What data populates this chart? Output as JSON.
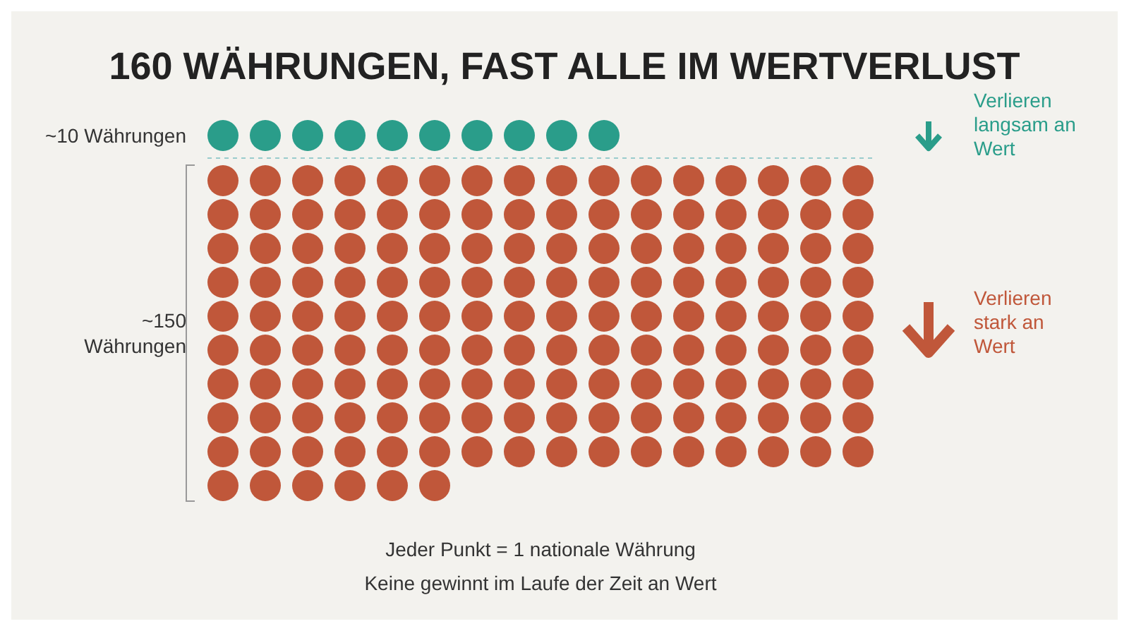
{
  "chart_data": {
    "type": "other",
    "title": "160 WÄHRUNGEN, FAST ALLE IM WERTVERLUST",
    "values": [
      10,
      150
    ],
    "value_labels": [
      "~10 Währungen",
      "~150 Währungen"
    ],
    "colors": [
      "#2a9d8a",
      "#c0573a"
    ],
    "annotations": [
      "Verlieren langsam an Wert",
      "Verlieren stark an Wert",
      "Jeder Punkt = 1 nationale Währung",
      "Keine gewinnt im Laufe der Zeit an Wert"
    ]
  }
}
